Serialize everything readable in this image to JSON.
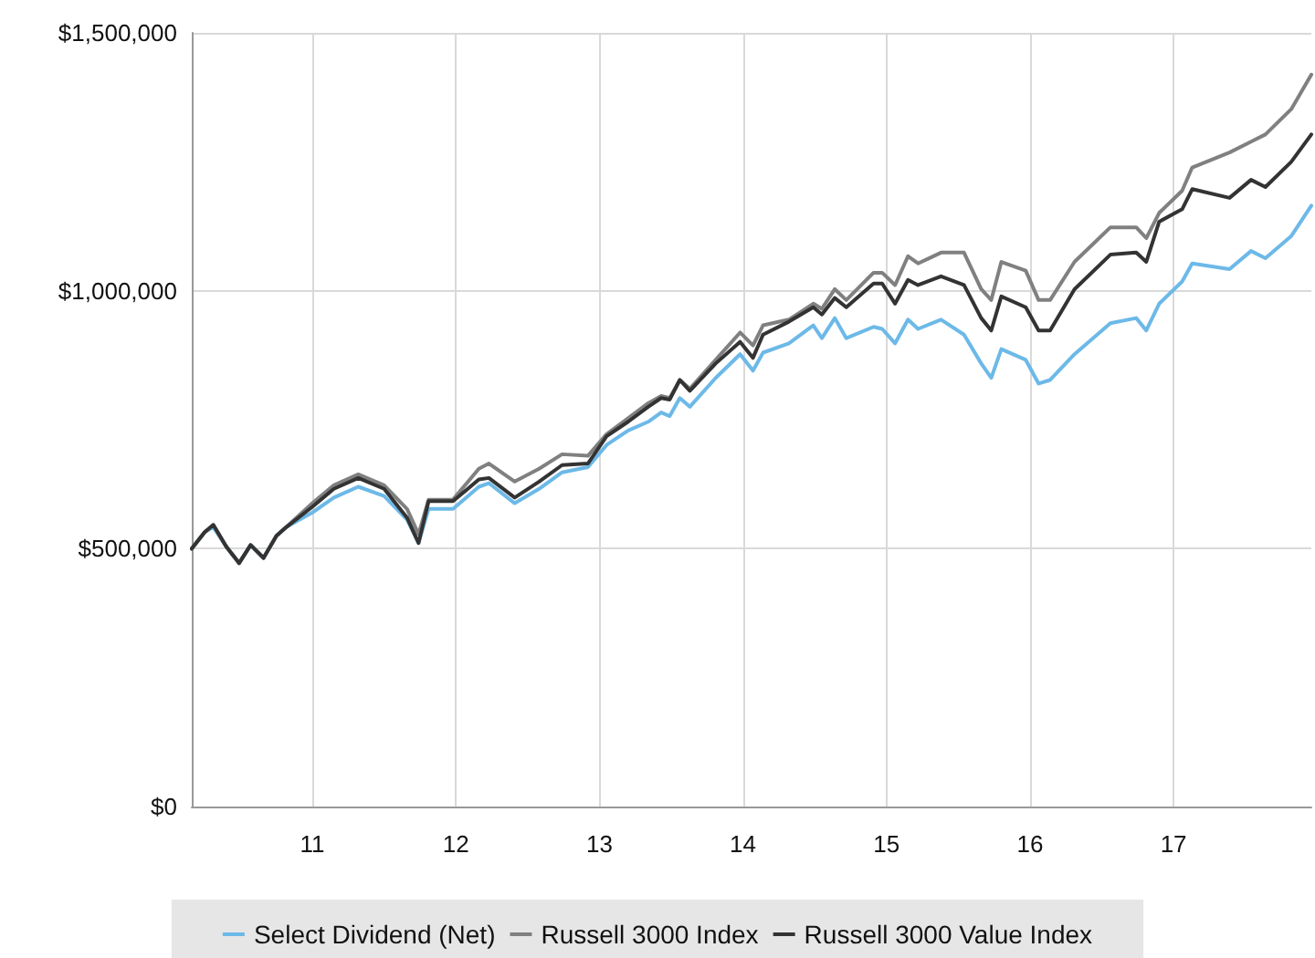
{
  "chart_data": {
    "type": "line",
    "x": [
      10.16,
      10.25,
      10.31,
      10.4,
      10.49,
      10.57,
      10.66,
      10.75,
      10.82,
      11.0,
      11.15,
      11.32,
      11.5,
      11.66,
      11.74,
      11.81,
      11.98,
      12.16,
      12.23,
      12.41,
      12.58,
      12.74,
      12.92,
      13.05,
      13.2,
      13.34,
      13.43,
      13.49,
      13.56,
      13.63,
      13.81,
      13.98,
      14.07,
      14.14,
      14.32,
      14.49,
      14.55,
      14.64,
      14.72,
      14.91,
      14.97,
      15.06,
      15.15,
      15.22,
      15.38,
      15.54,
      15.66,
      15.73,
      15.8,
      15.97,
      16.06,
      16.14,
      16.31,
      16.56,
      16.74,
      16.81,
      16.9,
      17.06,
      17.13,
      17.39,
      17.54,
      17.64,
      17.82,
      17.96
    ],
    "series": [
      {
        "name": "Select Dividend (Net)",
        "color": "#6cb9e8",
        "values": [
          500000,
          532000,
          542000,
          504000,
          472000,
          507000,
          482000,
          525000,
          542000,
          570000,
          599000,
          620000,
          602000,
          556000,
          511000,
          577000,
          577000,
          620000,
          627000,
          588000,
          616000,
          648000,
          658000,
          701000,
          729000,
          746000,
          764000,
          757000,
          792000,
          775000,
          831000,
          877000,
          845000,
          880000,
          898000,
          933000,
          908000,
          947000,
          908000,
          930000,
          926000,
          898000,
          944000,
          926000,
          944000,
          915000,
          859000,
          831000,
          887000,
          866000,
          820000,
          827000,
          877000,
          937000,
          947000,
          923000,
          975000,
          1018000,
          1053000,
          1042000,
          1077000,
          1063000,
          1106000,
          1165000
        ]
      },
      {
        "name": "Russell 3000 Index",
        "color": "#808080",
        "values": [
          500000,
          532000,
          546000,
          504000,
          472000,
          507000,
          482000,
          525000,
          542000,
          588000,
          623000,
          644000,
          623000,
          577000,
          528000,
          595000,
          595000,
          655000,
          665000,
          630000,
          655000,
          683000,
          680000,
          722000,
          753000,
          782000,
          796000,
          792000,
          827000,
          810000,
          866000,
          919000,
          894000,
          933000,
          944000,
          975000,
          965000,
          1003000,
          982000,
          1035000,
          1035000,
          1011000,
          1067000,
          1053000,
          1074000,
          1074000,
          1003000,
          982000,
          1056000,
          1039000,
          982000,
          982000,
          1056000,
          1123000,
          1123000,
          1102000,
          1151000,
          1194000,
          1239000,
          1268000,
          1289000,
          1303000,
          1352000,
          1419000
        ]
      },
      {
        "name": "Russell 3000 Value Index",
        "color": "#333333",
        "values": [
          500000,
          532000,
          546000,
          504000,
          472000,
          507000,
          482000,
          525000,
          542000,
          581000,
          616000,
          637000,
          616000,
          560000,
          511000,
          592000,
          592000,
          634000,
          637000,
          599000,
          630000,
          662000,
          665000,
          718000,
          746000,
          775000,
          792000,
          789000,
          827000,
          806000,
          859000,
          901000,
          870000,
          915000,
          940000,
          968000,
          954000,
          986000,
          968000,
          1014000,
          1014000,
          975000,
          1021000,
          1011000,
          1028000,
          1011000,
          947000,
          923000,
          989000,
          968000,
          923000,
          923000,
          1003000,
          1070000,
          1074000,
          1056000,
          1134000,
          1158000,
          1197000,
          1180000,
          1215000,
          1201000,
          1250000,
          1303000
        ]
      }
    ],
    "xlim": [
      10.16,
      17.96
    ],
    "xticks": [
      11,
      12,
      13,
      14,
      15,
      16,
      17
    ],
    "ylim": [
      0,
      1500000
    ],
    "yticks": [
      {
        "value": 0,
        "label": "$0"
      },
      {
        "value": 500000,
        "label": "$500,000"
      },
      {
        "value": 1000000,
        "label": "$1,000,000"
      },
      {
        "value": 1500000,
        "label": "$1,500,000"
      }
    ],
    "grid": true,
    "legend": "bottom",
    "marker": "none",
    "line_style": "solid"
  }
}
